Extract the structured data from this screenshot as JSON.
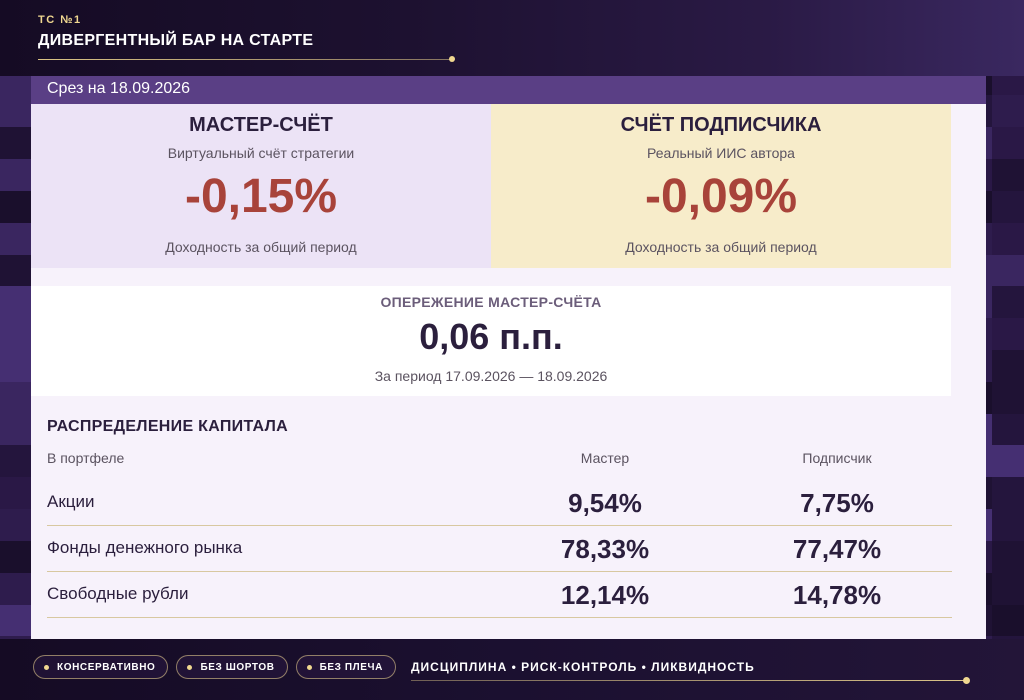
{
  "header": {
    "kicker": "ТС №1",
    "title": "ДИВЕРГЕНТНЫЙ БАР НА СТАРТЕ"
  },
  "snapshot": {
    "date_label": "Срез на 18.09.2026"
  },
  "master_account": {
    "name": "МАСТЕР-СЧЁТ",
    "description": "Виртуальный счёт стратегии",
    "return": "-0,15%",
    "return_note": "Доходность за общий период"
  },
  "subscriber_account": {
    "name": "СЧЁТ ПОДПИСЧИКА",
    "description": "Реальный ИИС автора",
    "return": "-0,09%",
    "return_note": "Доходность за общий период"
  },
  "lead": {
    "label": "ОПЕРЕЖЕНИЕ МАСТЕР-СЧЁТА",
    "value": "0,06 п.п.",
    "period": "За период 17.09.2026 — 18.09.2026"
  },
  "allocation": {
    "heading": "РАСПРЕДЕЛЕНИЕ КАПИТАЛА",
    "columns": [
      "В портфеле",
      "Мастер",
      "Подписчик"
    ],
    "rows": [
      {
        "label": "Акции",
        "master": "9,54%",
        "subscriber": "7,75%"
      },
      {
        "label": "Фонды денежного рынка",
        "master": "78,33%",
        "subscriber": "77,47%"
      },
      {
        "label": "Свободные рубли",
        "master": "12,14%",
        "subscriber": "14,78%"
      }
    ]
  },
  "footer": {
    "chips": [
      "КОНСЕРВАТИВНО",
      "БЕЗ ШОРТОВ",
      "БЕЗ ПЛЕЧА"
    ],
    "motto": "ДИСЦИПЛИНА • РИСК-КОНТРОЛЬ • ЛИКВИДНОСТЬ"
  },
  "colors": {
    "accent_gold": "#f0d890",
    "negative_return": "#a8433a",
    "band_purple": "#5a3f85",
    "master_bg": "#ece3f6",
    "subscriber_bg": "#f7ecca"
  }
}
